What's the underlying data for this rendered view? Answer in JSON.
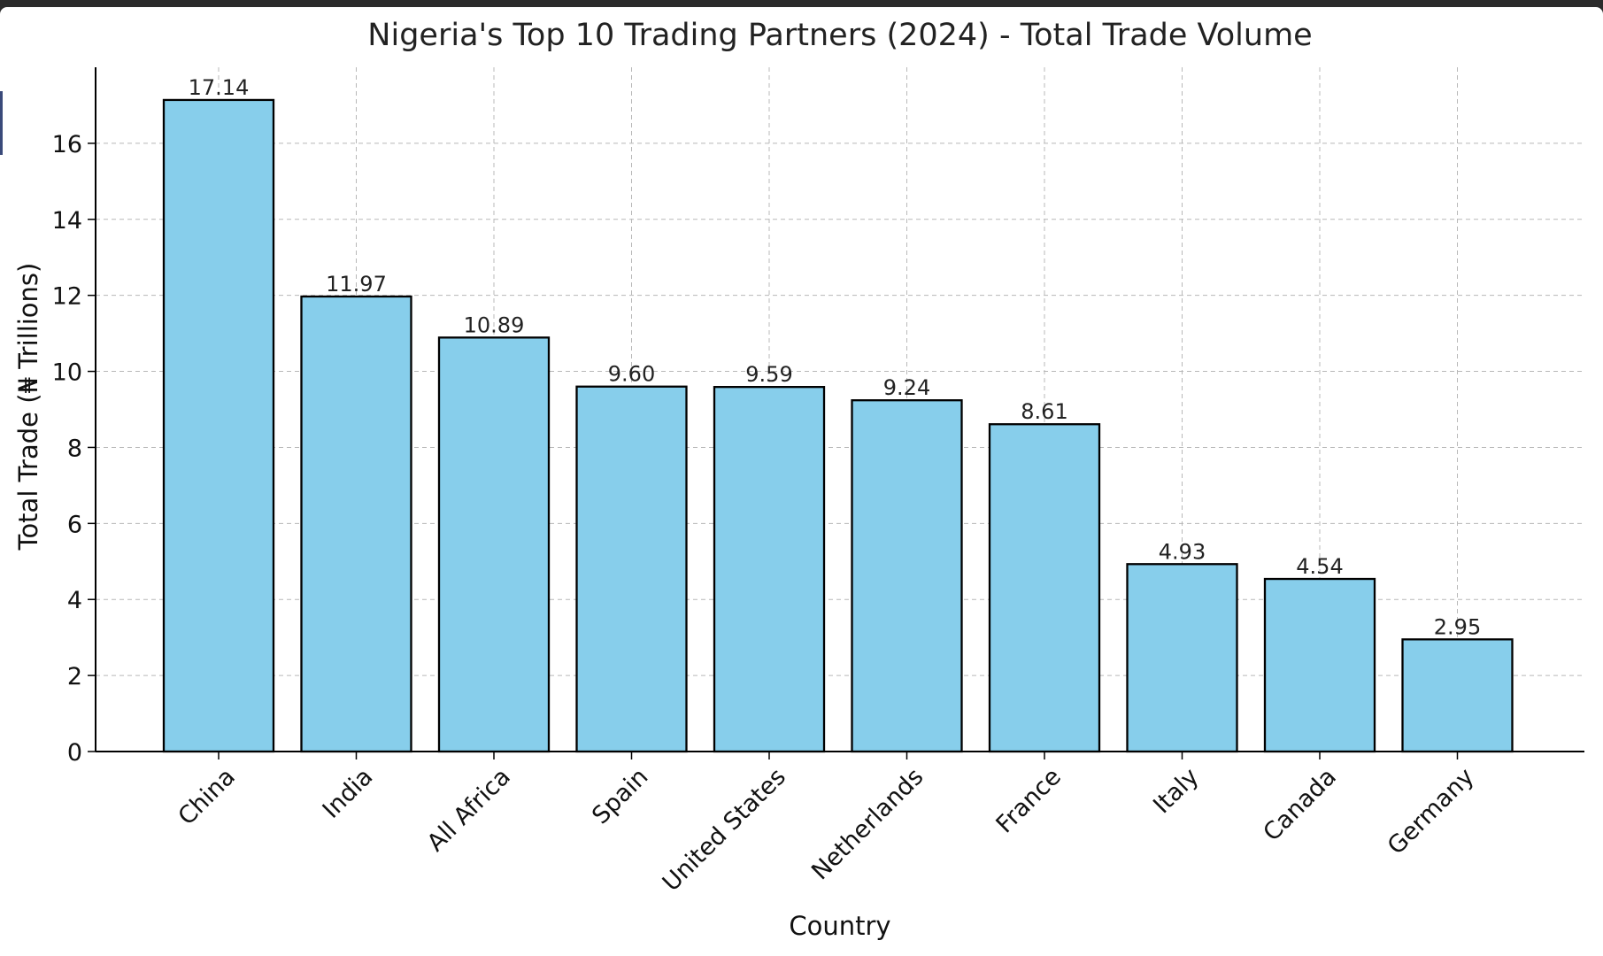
{
  "chart_data": {
    "type": "bar",
    "title": "Nigeria's Top 10 Trading Partners (2024) - Total Trade Volume",
    "xlabel": "Country",
    "ylabel": "Total Trade (₦ Trillions)",
    "categories": [
      "China",
      "India",
      "All Africa",
      "Spain",
      "United States",
      "Netherlands",
      "France",
      "Italy",
      "Canada",
      "Germany"
    ],
    "values": [
      17.14,
      11.97,
      10.89,
      9.6,
      9.59,
      9.24,
      8.61,
      4.93,
      4.54,
      2.95
    ],
    "value_labels": [
      "17.14",
      "11.97",
      "10.89",
      "9.60",
      "9.59",
      "9.24",
      "8.61",
      "4.93",
      "4.54",
      "2.95"
    ],
    "ylim": [
      0,
      18
    ],
    "yticks": [
      0,
      2,
      4,
      6,
      8,
      10,
      12,
      14,
      16
    ],
    "grid": true,
    "bar_color": "#87ceeb",
    "edge_color": "#000000"
  }
}
